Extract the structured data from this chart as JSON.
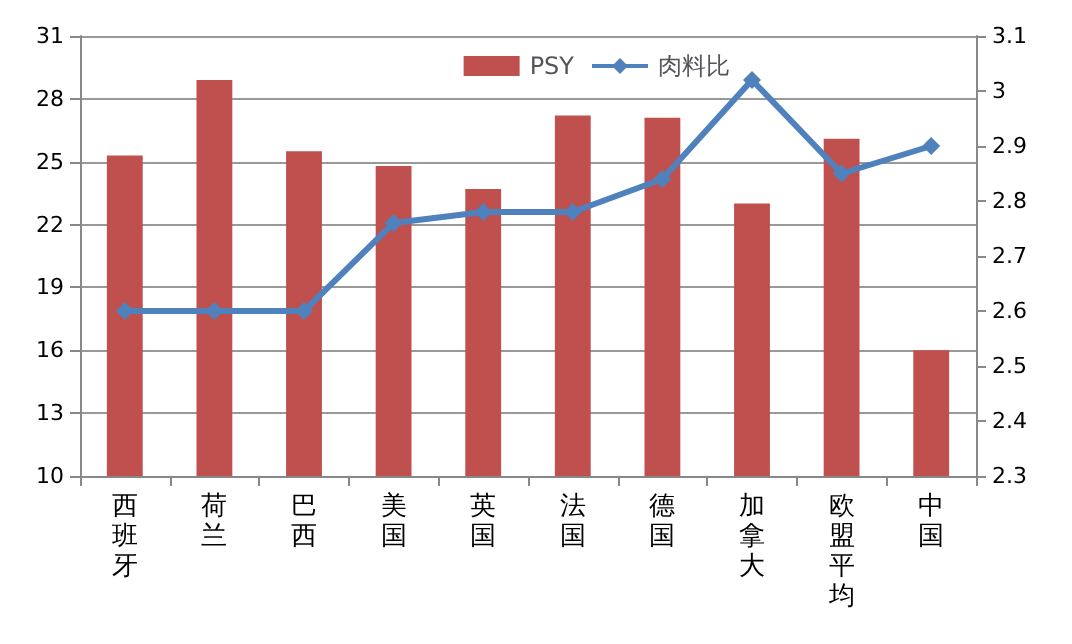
{
  "chart_data": {
    "type": "bar",
    "categories": [
      "西班牙",
      "荷兰",
      "巴西",
      "美国",
      "英国",
      "法国",
      "德国",
      "加拿大",
      "欧盟平均",
      "中国"
    ],
    "series": [
      {
        "name": "PSY",
        "color": "#c0504d",
        "values": [
          25.3,
          28.9,
          25.5,
          24.8,
          23.7,
          27.2,
          27.1,
          23.0,
          26.1,
          16.0
        ]
      },
      {
        "name": "肉料比",
        "type": "line",
        "axis": "y2",
        "color": "#4f81bd",
        "marker": "diamond",
        "values": [
          2.6,
          2.6,
          2.6,
          2.76,
          2.78,
          2.78,
          2.84,
          3.02,
          2.85,
          2.9
        ]
      }
    ],
    "ylim": [
      10,
      31
    ],
    "yticks": [
      10,
      13,
      16,
      19,
      22,
      25,
      28,
      31
    ],
    "y2lim": [
      2.3,
      3.1
    ],
    "y2ticks": [
      2.3,
      2.4,
      2.5,
      2.6,
      2.7,
      2.8,
      2.9,
      3,
      3.1
    ],
    "grid": "y",
    "legend": "top right"
  }
}
